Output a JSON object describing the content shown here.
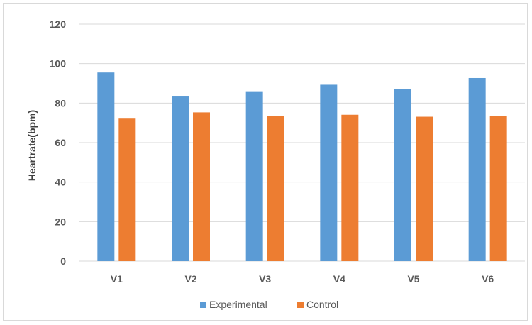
{
  "chart_data": {
    "type": "bar",
    "title": "",
    "xlabel": "",
    "ylabel": "Heartrate(bpm)",
    "categories": [
      "V1",
      "V2",
      "V3",
      "V4",
      "V5",
      "V6"
    ],
    "series": [
      {
        "name": "Experimental",
        "color": "#5b9bd5",
        "values": [
          95.5,
          83.7,
          86,
          89.3,
          87,
          92.7
        ]
      },
      {
        "name": "Control",
        "color": "#ed7d31",
        "values": [
          72.5,
          75.3,
          73.6,
          74.1,
          73.1,
          73.6
        ]
      }
    ],
    "ylim": [
      0,
      120
    ],
    "yticks": [
      0,
      20,
      40,
      60,
      80,
      100,
      120
    ],
    "grid": true,
    "legend_position": "bottom"
  }
}
